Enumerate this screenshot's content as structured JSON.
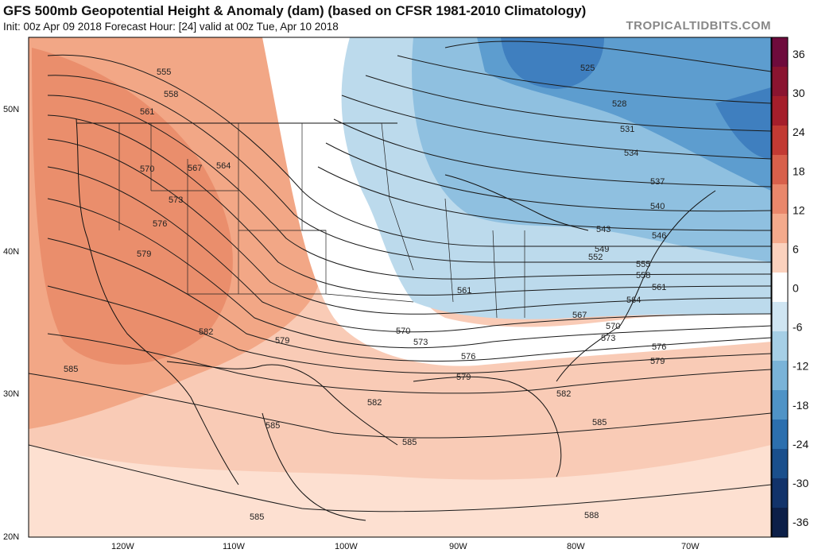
{
  "header": {
    "title": "GFS 500mb Geopotential Height & Anomaly (dam) (based on CFSR 1981-2010 Climatology)",
    "subtitle": "Init: 00z Apr 09 2018   Forecast Hour: [24]   valid at 00z Tue, Apr 10 2018",
    "brand": "TROPICALTIDBITS.COM"
  },
  "axes": {
    "lat_labels": [
      "50N",
      "40N",
      "30N",
      "20N"
    ],
    "lon_labels": [
      "120W",
      "110W",
      "100W",
      "90W",
      "80W",
      "70W"
    ]
  },
  "colorbar": {
    "labels": [
      "36",
      "30",
      "24",
      "18",
      "12",
      "6",
      "0",
      "-6",
      "-12",
      "-18",
      "-24",
      "-30",
      "-36"
    ],
    "colors": [
      "#6e0b3c",
      "#8a1430",
      "#a51e2b",
      "#c23a33",
      "#d8604b",
      "#e9876b",
      "#f4aa8c",
      "#fbd1bd",
      "#ffffff",
      "#cfe5f2",
      "#a6cfe6",
      "#7ab3d8",
      "#4f93c6",
      "#2c6fae",
      "#1a4f8c",
      "#12336a",
      "#0c1f48"
    ]
  },
  "contours": {
    "labels": [
      "525",
      "528",
      "531",
      "534",
      "537",
      "540",
      "543",
      "546",
      "549",
      "552",
      "555",
      "558",
      "561",
      "564",
      "567",
      "570",
      "573",
      "576",
      "579",
      "582",
      "585",
      "588"
    ]
  },
  "chart_data": {
    "type": "map",
    "field": "500mb geopotential height (dam) with anomaly shading",
    "contour_values": [
      525,
      528,
      531,
      534,
      537,
      540,
      543,
      546,
      549,
      552,
      555,
      558,
      561,
      564,
      567,
      570,
      573,
      576,
      579,
      582,
      585,
      588
    ],
    "anomaly_scale": [
      -36,
      -30,
      -24,
      -18,
      -12,
      -6,
      0,
      6,
      12,
      18,
      24,
      30,
      36
    ],
    "lat_range": [
      20,
      55
    ],
    "lon_range": [
      -128,
      -64
    ]
  }
}
